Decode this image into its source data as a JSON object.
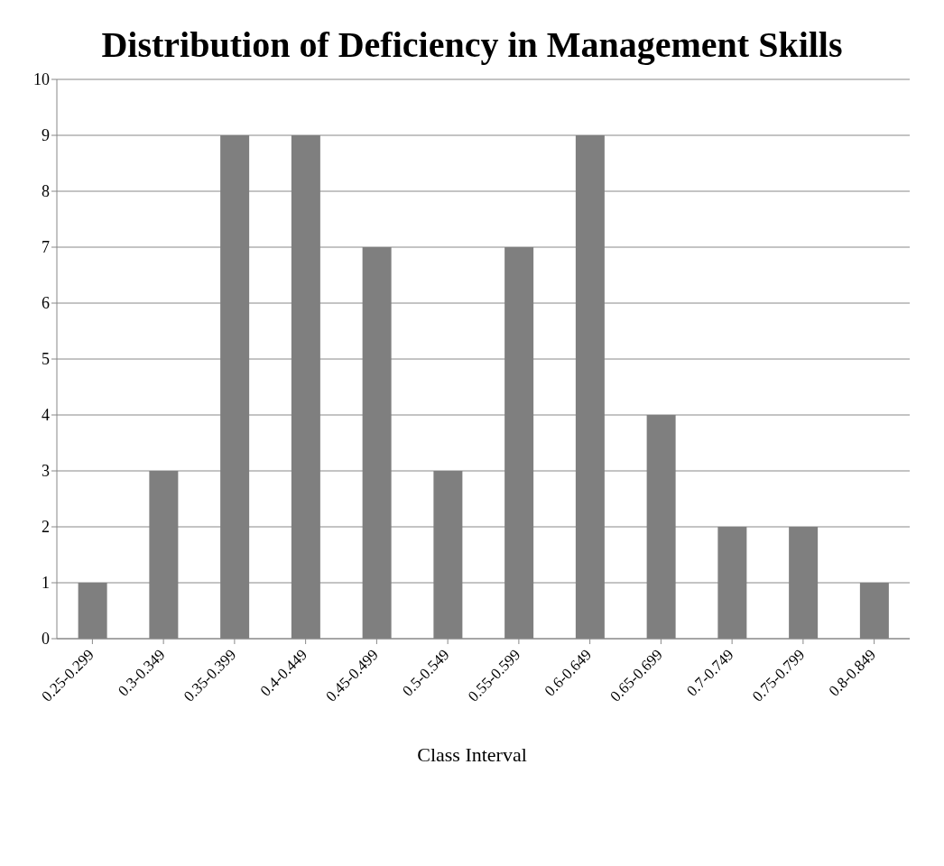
{
  "chart_data": {
    "type": "bar",
    "title": "Distribution of Deficiency in Management Skills",
    "xlabel": "Class Interval",
    "categories": [
      "0.25-0.299",
      "0.3-0.349",
      "0.35-0.399",
      "0.4-0.449",
      "0.45-0.499",
      "0.5-0.549",
      "0.55-0.599",
      "0.6-0.649",
      "0.65-0.699",
      "0.7-0.749",
      "0.75-0.799",
      "0.8-0.849"
    ],
    "values": [
      1,
      3,
      9,
      9,
      7,
      3,
      7,
      9,
      4,
      2,
      2,
      1
    ],
    "color": "#7f7f7f",
    "ylim": [
      0,
      10
    ],
    "yticks": [
      0,
      1,
      2,
      3,
      4,
      5,
      6,
      7,
      8,
      9,
      10
    ],
    "grid": "y"
  }
}
